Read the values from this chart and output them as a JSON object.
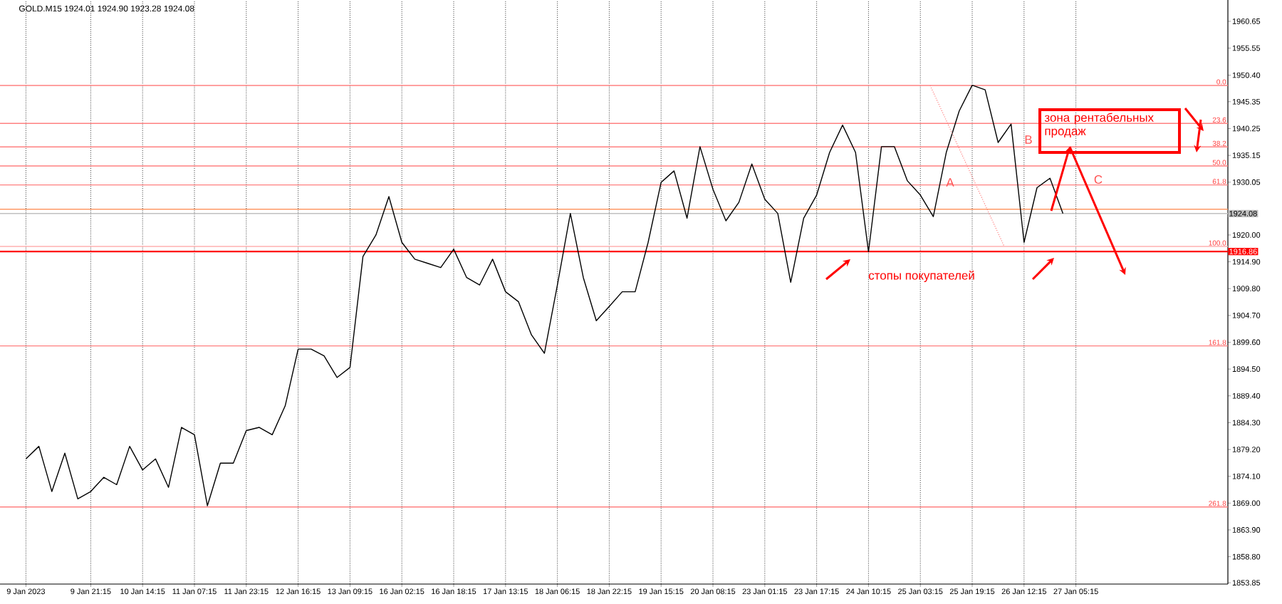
{
  "chart_data": {
    "type": "line",
    "title": "GOLD.M15  1924.01 1924.90 1923.28 1924.08",
    "categories": [
      "9 Jan 2023",
      null,
      null,
      null,
      null,
      "9 Jan 21:15",
      null,
      null,
      null,
      "10 Jan 14:15",
      null,
      null,
      null,
      "11 Jan 07:15",
      null,
      null,
      null,
      "11 Jan 23:15",
      null,
      null,
      null,
      "12 Jan 16:15",
      null,
      null,
      null,
      "13 Jan 09:15",
      null,
      null,
      null,
      "16 Jan 02:15",
      null,
      null,
      null,
      "16 Jan 18:15",
      null,
      null,
      null,
      "17 Jan 13:15",
      null,
      null,
      null,
      "18 Jan 06:15",
      null,
      null,
      null,
      "18 Jan 22:15",
      null,
      null,
      null,
      "19 Jan 15:15",
      null,
      null,
      null,
      "20 Jan 08:15",
      null,
      null,
      null,
      "23 Jan 01:15",
      null,
      null,
      null,
      "23 Jan 17:15",
      null,
      null,
      null,
      "24 Jan 10:15",
      null,
      null,
      null,
      "25 Jan 03:15",
      null,
      null,
      null,
      "25 Jan 19:15",
      null,
      null,
      null,
      "26 Jan 12:15",
      null,
      null,
      null,
      "27 Jan 05:15"
    ],
    "values": [
      1877.4,
      1879.8,
      1871.2,
      1878.5,
      1869.8,
      1871.2,
      1873.9,
      1872.5,
      1879.8,
      1875.3,
      1877.4,
      1872.0,
      1883.4,
      1882.0,
      1868.5,
      1876.6,
      1876.6,
      1882.8,
      1883.4,
      1882.0,
      1887.5,
      1898.3,
      1898.3,
      1897.0,
      1892.9,
      1894.8,
      1915.9,
      1920.0,
      1927.3,
      1918.6,
      1915.4,
      1914.6,
      1913.8,
      1917.3,
      1911.9,
      1910.5,
      1915.4,
      1909.2,
      1907.3,
      1901.0,
      1897.5,
      1910.5,
      1924.1,
      1911.9,
      1903.7,
      1906.4,
      1909.2,
      1909.2,
      1918.6,
      1930.0,
      1932.2,
      1923.2,
      1936.8,
      1928.7,
      1922.7,
      1926.2,
      1933.5,
      1926.8,
      1924.1,
      1911.0,
      1923.2,
      1927.6,
      1935.7,
      1940.9,
      1935.7,
      1916.8,
      1936.8,
      1936.8,
      1930.3,
      1927.6,
      1923.5,
      1935.7,
      1943.6,
      1948.5,
      1947.6,
      1937.6,
      1941.1,
      1918.6,
      1929.0,
      1930.8,
      1924.1,
      null
    ],
    "color": "#000000",
    "ylim": [
      1853.6,
      1964.7
    ],
    "yticks": [
      {
        "value": 1853.85,
        "label": "1853.85"
      },
      {
        "value": 1858.8,
        "label": "1858.80"
      },
      {
        "value": 1863.9,
        "label": "1863.90"
      },
      {
        "value": 1869.0,
        "label": "1869.00"
      },
      {
        "value": 1874.1,
        "label": "1874.10"
      },
      {
        "value": 1879.2,
        "label": "1879.20"
      },
      {
        "value": 1884.3,
        "label": "1884.30"
      },
      {
        "value": 1889.4,
        "label": "1889.40"
      },
      {
        "value": 1894.5,
        "label": "1894.50"
      },
      {
        "value": 1899.6,
        "label": "1899.60"
      },
      {
        "value": 1904.7,
        "label": "1904.70"
      },
      {
        "value": 1909.8,
        "label": "1909.80"
      },
      {
        "value": 1914.9,
        "label": "1914.90"
      },
      {
        "value": 1920.0,
        "label": "1920.00"
      },
      1930.05,
      1935.15,
      1940.25,
      1945.35,
      {
        "value": 1950.4,
        "label": "1950.40"
      },
      1955.55,
      1960.65
    ],
    "grid": "x",
    "ref_lines": [
      {
        "axis": "y",
        "value": 1916.86,
        "label": "1916.86",
        "color": "#ff0000"
      },
      {
        "axis": "y",
        "value": 1924.08,
        "label": "1924.08",
        "color": "#c0c0c0"
      },
      {
        "axis": "y",
        "value": 1924.9,
        "color": "#ff9966"
      },
      {
        "axis": "y",
        "value": 1948.45,
        "color": "#ff8080"
      },
      {
        "axis": "y",
        "value": 1941.22,
        "color": "#ff8080"
      },
      {
        "axis": "y",
        "value": 1936.75,
        "color": "#ff8080"
      },
      {
        "axis": "y",
        "value": 1933.13,
        "color": "#ff8080"
      },
      {
        "axis": "y",
        "value": 1929.52,
        "color": "#ff8080"
      },
      {
        "axis": "y",
        "value": 1917.82,
        "color": "#ffb0b0"
      },
      {
        "axis": "y",
        "value": 1898.9,
        "color": "#ff8080"
      },
      {
        "axis": "y",
        "value": 1868.27,
        "color": "#ff8080"
      }
    ],
    "annotations": [
      "стопы покупателей",
      "зона рентабельных продаж",
      "A",
      "B",
      "C",
      {
        "text": "0.0",
        "y": 1948.45
      },
      {
        "text": "23.6",
        "y": 1941.22
      },
      {
        "text": "38.2",
        "y": 1936.75
      },
      {
        "text": "50.0",
        "y": 1933.13
      },
      {
        "text": "61.8",
        "y": 1929.52
      },
      {
        "text": "100.0",
        "y": 1917.82
      },
      {
        "text": "161.8",
        "y": 1898.9
      },
      {
        "text": "261.8",
        "y": 1868.27
      }
    ]
  }
}
